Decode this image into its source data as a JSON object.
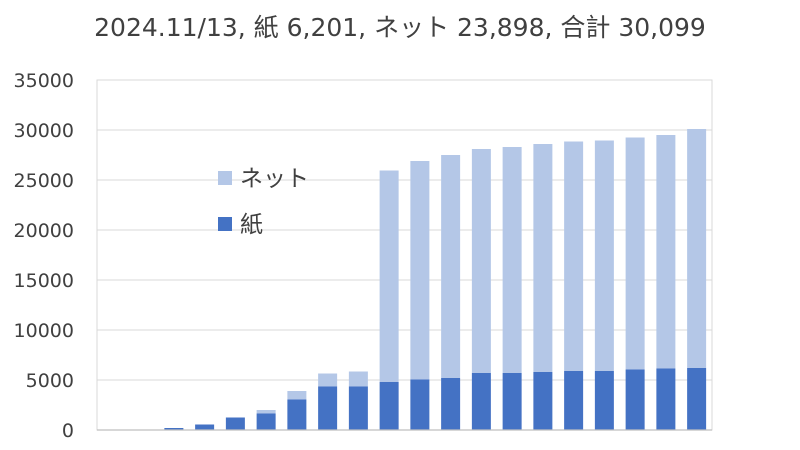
{
  "chart_data": {
    "type": "bar",
    "stacked": true,
    "title": "2024.11/13, 紙 6,201, ネット 23,898, 合計 30,099",
    "xlabel": "",
    "ylabel": "",
    "ylim": [
      0,
      35000
    ],
    "yticks": [
      "0",
      "5000",
      "10000",
      "15000",
      "20000",
      "25000",
      "30000",
      "35000"
    ],
    "grid": "horizontal",
    "legend": "upper-left inside plot",
    "categories": [
      "",
      "",
      "",
      "",
      "",
      "",
      "",
      "",
      "",
      "",
      "",
      "",
      "",
      "",
      "",
      "",
      "",
      "",
      "",
      ""
    ],
    "series": [
      {
        "name": "紙",
        "color": "#4472C4",
        "values": [
          0,
          0,
          200,
          550,
          1250,
          1650,
          3050,
          4350,
          4350,
          4800,
          5050,
          5200,
          5700,
          5700,
          5800,
          5900,
          5900,
          6050,
          6150,
          6201
        ]
      },
      {
        "name": "ネット",
        "color": "#B4C7E7",
        "values": [
          0,
          0,
          0,
          0,
          0,
          350,
          850,
          1300,
          1500,
          21150,
          21850,
          22300,
          22400,
          22600,
          22800,
          22950,
          23050,
          23200,
          23350,
          23898
        ]
      }
    ]
  }
}
